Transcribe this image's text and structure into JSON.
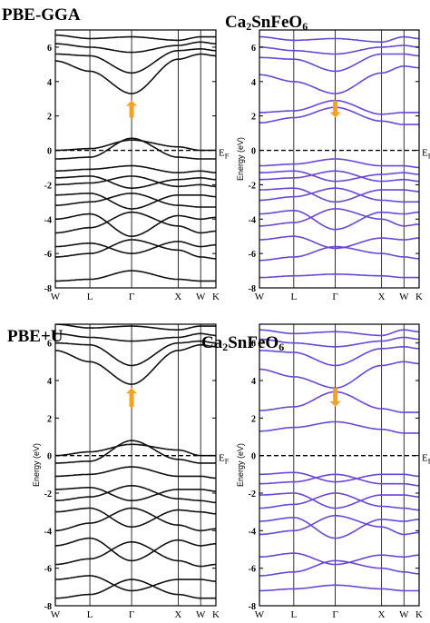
{
  "figure": {
    "top_method": "PBE-GGA",
    "bottom_method": "PBE+U",
    "compound_prefix": "Ca",
    "compound_sub1": "2",
    "compound_mid": "SnFeO",
    "compound_sub2": "6"
  },
  "colors": {
    "spin_up": "#111111",
    "spin_down": "#6a45d8",
    "arrow": "#f5a21f",
    "fermi": "#000000"
  },
  "chart_data": [
    {
      "type": "line",
      "name": "PBE-GGA spin up",
      "ylabel": "",
      "ylim": [
        -8,
        7
      ],
      "yticks": [
        -8,
        -6,
        -4,
        -2,
        0,
        2,
        4,
        6
      ],
      "xticks": [
        "W",
        "L",
        "Γ",
        "X",
        "W",
        "K"
      ],
      "fermi_label": "E",
      "fermi_sub": "F",
      "arrow": {
        "energy_from": 1.9,
        "energy_to": 2.9,
        "direction": "up"
      },
      "bands": [
        [
          -7.6,
          -7.5,
          -7.0,
          -7.5,
          -7.6,
          -7.6
        ],
        [
          -6.2,
          -6.0,
          -5.2,
          -5.8,
          -6.2,
          -6.3
        ],
        [
          -5.6,
          -5.4,
          -6.0,
          -5.3,
          -5.6,
          -5.5
        ],
        [
          -4.8,
          -4.5,
          -3.6,
          -4.4,
          -4.8,
          -4.7
        ],
        [
          -4.0,
          -3.7,
          -5.0,
          -3.8,
          -4.0,
          -3.9
        ],
        [
          -3.2,
          -3.0,
          -2.5,
          -3.2,
          -3.3,
          -3.3
        ],
        [
          -2.6,
          -2.5,
          -3.4,
          -2.6,
          -2.6,
          -2.7
        ],
        [
          -2.0,
          -1.9,
          -1.5,
          -2.1,
          -2.0,
          -2.1
        ],
        [
          -1.6,
          -1.5,
          -2.2,
          -1.7,
          -1.6,
          -1.7
        ],
        [
          -1.2,
          -1.1,
          -0.9,
          -1.3,
          -1.2,
          -1.3
        ],
        [
          -0.5,
          -0.4,
          0.7,
          -0.4,
          -0.5,
          -0.5
        ],
        [
          0.0,
          0.1,
          0.6,
          0.2,
          0.0,
          0.0
        ],
        [
          5.2,
          4.6,
          3.3,
          5.3,
          5.6,
          5.5
        ],
        [
          5.6,
          5.5,
          4.5,
          5.8,
          5.9,
          5.8
        ],
        [
          6.2,
          6.0,
          5.7,
          6.1,
          6.3,
          6.2
        ],
        [
          6.7,
          6.5,
          6.6,
          6.4,
          6.6,
          6.6
        ]
      ]
    },
    {
      "type": "line",
      "name": "PBE-GGA spin down",
      "ylabel": "Energy (eV)",
      "ylim": [
        -8,
        7
      ],
      "yticks": [
        -8,
        -6,
        -4,
        -2,
        0,
        2,
        4,
        6
      ],
      "xticks": [
        "W",
        "L",
        "Γ",
        "X",
        "W",
        "K"
      ],
      "fermi_label": "E",
      "fermi_sub": "F",
      "arrow": {
        "energy_from": 2.9,
        "energy_to": 1.9,
        "direction": "down"
      },
      "bands": [
        [
          -7.4,
          -7.3,
          -7.2,
          -7.3,
          -7.4,
          -7.4
        ],
        [
          -6.4,
          -6.2,
          -5.6,
          -6.0,
          -6.2,
          -6.3
        ],
        [
          -5.2,
          -5.0,
          -5.7,
          -5.1,
          -5.2,
          -5.1
        ],
        [
          -4.4,
          -4.2,
          -3.4,
          -4.0,
          -4.4,
          -4.3
        ],
        [
          -3.7,
          -3.5,
          -4.6,
          -3.6,
          -3.7,
          -3.6
        ],
        [
          -2.9,
          -2.7,
          -2.2,
          -2.9,
          -3.0,
          -3.0
        ],
        [
          -2.3,
          -2.2,
          -3.0,
          -2.3,
          -2.3,
          -2.4
        ],
        [
          -1.7,
          -1.6,
          -1.2,
          -1.8,
          -1.7,
          -1.8
        ],
        [
          -1.3,
          -1.2,
          -1.8,
          -1.4,
          -1.3,
          -1.4
        ],
        [
          -0.9,
          -0.8,
          -0.5,
          -0.9,
          -0.9,
          -1.0
        ],
        [
          1.6,
          1.9,
          2.5,
          1.7,
          1.5,
          1.5
        ],
        [
          2.2,
          2.3,
          2.9,
          2.1,
          2.2,
          2.2
        ],
        [
          4.4,
          4.0,
          3.3,
          4.5,
          4.9,
          4.8
        ],
        [
          5.4,
          5.3,
          4.6,
          5.6,
          5.6,
          5.5
        ],
        [
          6.0,
          5.8,
          5.6,
          6.0,
          6.1,
          6.0
        ],
        [
          6.6,
          6.4,
          6.5,
          6.3,
          6.6,
          6.5
        ]
      ]
    },
    {
      "type": "line",
      "name": "PBE+U spin up",
      "ylabel": "Energy (eV)",
      "ylim": [
        -8,
        7
      ],
      "yticks": [
        -8,
        -6,
        -4,
        -2,
        0,
        2,
        4,
        6
      ],
      "xticks": [
        "W",
        "L",
        "Γ",
        "X",
        "W",
        "K"
      ],
      "fermi_label": "E",
      "fermi_sub": "F",
      "arrow": {
        "energy_from": 2.6,
        "energy_to": 3.6,
        "direction": "up"
      },
      "bands": [
        [
          -7.6,
          -7.4,
          -6.6,
          -7.4,
          -7.6,
          -7.6
        ],
        [
          -6.6,
          -6.4,
          -7.2,
          -6.6,
          -6.6,
          -6.7
        ],
        [
          -5.8,
          -5.5,
          -4.6,
          -5.6,
          -5.9,
          -5.8
        ],
        [
          -4.8,
          -4.4,
          -5.6,
          -4.5,
          -4.8,
          -4.7
        ],
        [
          -4.0,
          -3.6,
          -2.8,
          -3.7,
          -4.0,
          -3.9
        ],
        [
          -3.0,
          -2.8,
          -3.8,
          -2.9,
          -3.0,
          -3.1
        ],
        [
          -2.4,
          -2.2,
          -1.6,
          -2.3,
          -2.4,
          -2.5
        ],
        [
          -1.8,
          -1.7,
          -2.4,
          -1.8,
          -1.8,
          -1.9
        ],
        [
          -1.1,
          -1.0,
          -0.6,
          -1.1,
          -1.1,
          -1.2
        ],
        [
          -0.4,
          -0.3,
          0.8,
          -0.2,
          -0.4,
          -0.4
        ],
        [
          0.0,
          0.2,
          0.6,
          0.3,
          0.0,
          0.0
        ],
        [
          5.6,
          5.0,
          3.8,
          5.6,
          5.9,
          5.8
        ],
        [
          6.0,
          5.9,
          4.8,
          6.0,
          6.1,
          6.0
        ],
        [
          6.5,
          6.3,
          6.1,
          6.3,
          6.5,
          6.4
        ],
        [
          7.0,
          6.8,
          6.9,
          6.7,
          6.9,
          6.9
        ]
      ]
    },
    {
      "type": "line",
      "name": "PBE+U spin down",
      "ylabel": "Energy (eV)",
      "ylim": [
        -8,
        7
      ],
      "yticks": [
        -8,
        -6,
        -4,
        -2,
        0,
        2,
        4,
        6
      ],
      "xticks": [
        "W",
        "L",
        "Γ",
        "X",
        "W",
        "K"
      ],
      "fermi_label": "E",
      "fermi_sub": "F",
      "arrow": {
        "energy_from": 3.6,
        "energy_to": 2.6,
        "direction": "down"
      },
      "bands": [
        [
          -7.2,
          -7.1,
          -6.9,
          -7.1,
          -7.2,
          -7.2
        ],
        [
          -6.4,
          -6.2,
          -5.6,
          -6.0,
          -6.2,
          -6.3
        ],
        [
          -5.4,
          -5.2,
          -5.8,
          -5.3,
          -5.4,
          -5.3
        ],
        [
          -4.2,
          -4.0,
          -3.2,
          -3.8,
          -4.2,
          -4.1
        ],
        [
          -3.5,
          -3.3,
          -4.4,
          -3.4,
          -3.5,
          -3.4
        ],
        [
          -2.8,
          -2.6,
          -2.0,
          -2.7,
          -2.8,
          -2.9
        ],
        [
          -2.1,
          -2.0,
          -2.8,
          -2.1,
          -2.1,
          -2.2
        ],
        [
          -1.5,
          -1.4,
          -1.0,
          -1.5,
          -1.5,
          -1.6
        ],
        [
          -1.0,
          -0.9,
          -1.4,
          -1.0,
          -1.0,
          -1.1
        ],
        [
          1.3,
          1.5,
          1.8,
          1.4,
          1.2,
          1.2
        ],
        [
          2.4,
          2.6,
          3.4,
          2.5,
          2.3,
          2.3
        ],
        [
          4.6,
          4.2,
          3.6,
          4.8,
          5.0,
          4.9
        ],
        [
          5.6,
          5.5,
          4.8,
          5.7,
          5.8,
          5.7
        ],
        [
          6.2,
          6.0,
          5.8,
          6.1,
          6.3,
          6.2
        ],
        [
          6.7,
          6.5,
          6.6,
          6.4,
          6.7,
          6.6
        ]
      ]
    }
  ]
}
